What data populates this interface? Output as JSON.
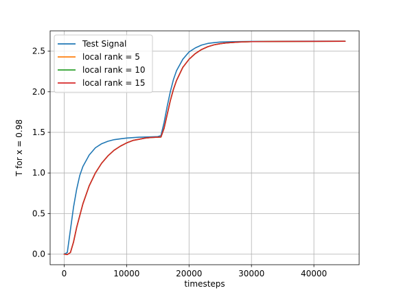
{
  "chart_data": {
    "type": "line",
    "title": "",
    "xlabel": "timesteps",
    "ylabel": "T for x = 0.98",
    "xlim": [
      -2250,
      47250
    ],
    "ylim": [
      -0.13,
      2.75
    ],
    "xticks": [
      0,
      10000,
      20000,
      30000,
      40000
    ],
    "xtick_labels": [
      "0",
      "10000",
      "20000",
      "30000",
      "40000"
    ],
    "yticks": [
      0.0,
      0.5,
      1.0,
      1.5,
      2.0,
      2.5
    ],
    "ytick_labels": [
      "0.0",
      "0.5",
      "1.0",
      "1.5",
      "2.0",
      "2.5"
    ],
    "grid": true,
    "legend_position": "upper-left",
    "series": [
      {
        "name": "Test Signal",
        "color": "#1f77b4",
        "x": [
          0,
          500,
          1000,
          1500,
          2000,
          2500,
          3000,
          4000,
          5000,
          6000,
          7000,
          8000,
          9000,
          10000,
          12000,
          14000,
          15000,
          15500,
          16000,
          16500,
          17000,
          17500,
          18000,
          19000,
          20000,
          21000,
          22000,
          23000,
          24000,
          25000,
          27000,
          30000,
          35000,
          40000,
          45000
        ],
        "y": [
          0.0,
          0.02,
          0.3,
          0.58,
          0.8,
          0.97,
          1.08,
          1.22,
          1.31,
          1.36,
          1.39,
          1.41,
          1.42,
          1.43,
          1.44,
          1.445,
          1.448,
          1.46,
          1.62,
          1.82,
          2.0,
          2.15,
          2.26,
          2.4,
          2.49,
          2.54,
          2.575,
          2.595,
          2.605,
          2.612,
          2.617,
          2.62,
          2.622,
          2.623,
          2.623
        ]
      },
      {
        "name": "local rank = 5",
        "color": "#ff7f0e",
        "x": [
          0,
          500,
          1000,
          1500,
          2000,
          3000,
          4000,
          5000,
          6000,
          7000,
          8000,
          9000,
          10000,
          11000,
          12000,
          13000,
          14000,
          15000,
          15500,
          16000,
          16500,
          17000,
          17500,
          18000,
          19000,
          20000,
          21000,
          22000,
          23000,
          24000,
          25000,
          26000,
          28000,
          30000,
          35000,
          40000,
          45000
        ],
        "y": [
          0.0,
          -0.005,
          0.02,
          0.15,
          0.33,
          0.62,
          0.84,
          1.0,
          1.12,
          1.21,
          1.28,
          1.33,
          1.37,
          1.4,
          1.415,
          1.43,
          1.437,
          1.44,
          1.442,
          1.55,
          1.72,
          1.89,
          2.03,
          2.14,
          2.3,
          2.4,
          2.47,
          2.52,
          2.555,
          2.578,
          2.592,
          2.602,
          2.612,
          2.617,
          2.62,
          2.621,
          2.622
        ]
      },
      {
        "name": "local rank = 10",
        "color": "#2ca02c",
        "x": [
          0,
          500,
          1000,
          1500,
          2000,
          3000,
          4000,
          5000,
          6000,
          7000,
          8000,
          9000,
          10000,
          11000,
          12000,
          13000,
          14000,
          15000,
          15500,
          16000,
          16500,
          17000,
          17500,
          18000,
          19000,
          20000,
          21000,
          22000,
          23000,
          24000,
          25000,
          26000,
          28000,
          30000,
          35000,
          40000,
          45000
        ],
        "y": [
          0.0,
          -0.005,
          0.02,
          0.15,
          0.33,
          0.62,
          0.84,
          1.0,
          1.12,
          1.21,
          1.28,
          1.33,
          1.37,
          1.4,
          1.415,
          1.43,
          1.437,
          1.44,
          1.442,
          1.55,
          1.72,
          1.89,
          2.03,
          2.14,
          2.3,
          2.4,
          2.47,
          2.52,
          2.555,
          2.578,
          2.592,
          2.602,
          2.612,
          2.617,
          2.62,
          2.621,
          2.622
        ]
      },
      {
        "name": "local rank = 15",
        "color": "#d62728",
        "x": [
          0,
          500,
          1000,
          1500,
          2000,
          3000,
          4000,
          5000,
          6000,
          7000,
          8000,
          9000,
          10000,
          11000,
          12000,
          13000,
          14000,
          15000,
          15500,
          16000,
          16500,
          17000,
          17500,
          18000,
          19000,
          20000,
          21000,
          22000,
          23000,
          24000,
          25000,
          26000,
          28000,
          30000,
          35000,
          40000,
          45000
        ],
        "y": [
          0.0,
          -0.005,
          0.02,
          0.15,
          0.33,
          0.62,
          0.84,
          1.0,
          1.12,
          1.21,
          1.28,
          1.33,
          1.37,
          1.4,
          1.415,
          1.43,
          1.437,
          1.44,
          1.442,
          1.55,
          1.72,
          1.89,
          2.03,
          2.14,
          2.3,
          2.4,
          2.47,
          2.52,
          2.555,
          2.578,
          2.592,
          2.602,
          2.612,
          2.617,
          2.62,
          2.621,
          2.622
        ]
      }
    ]
  }
}
